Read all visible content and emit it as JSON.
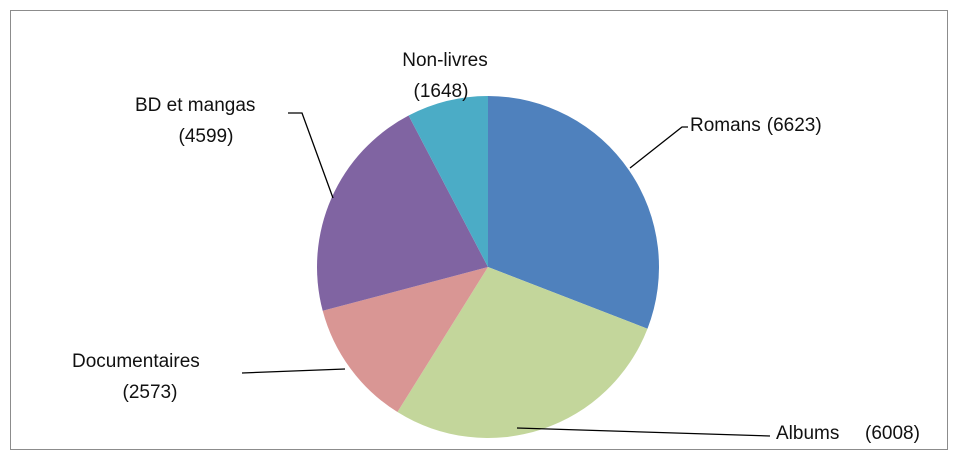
{
  "chart_data": {
    "type": "pie",
    "categories": [
      "Romans",
      "Albums",
      "Documentaires",
      "BD et mangas",
      "Non-livres"
    ],
    "values": [
      6623,
      6008,
      2573,
      4599,
      1648
    ],
    "value_labels": [
      "(6623)",
      "(6008)",
      "(2573)",
      "(4599)",
      "(1648)"
    ],
    "colors": [
      "#4f81bd",
      "#c3d69b",
      "#d99694",
      "#8064a2",
      "#4bacc6"
    ]
  }
}
